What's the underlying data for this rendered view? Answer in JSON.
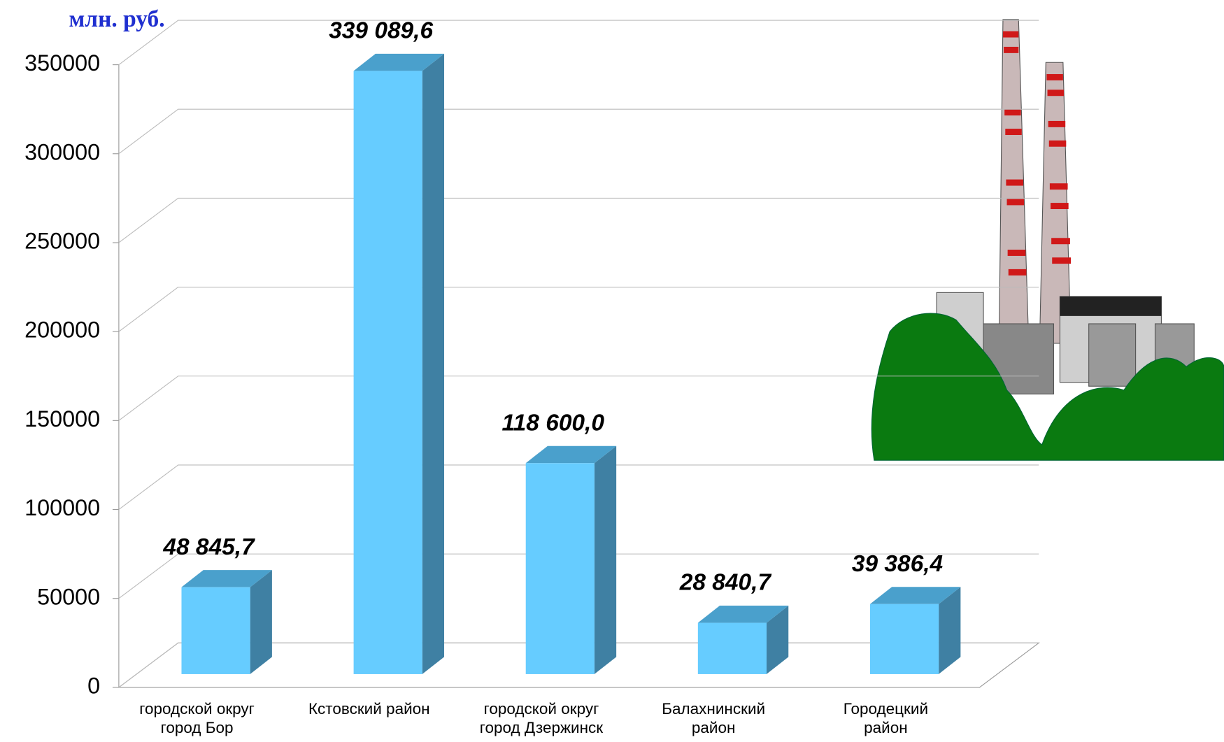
{
  "chart_data": {
    "type": "bar3d",
    "y_label": "млн. руб.",
    "categories": [
      "городской округ\nгород Бор",
      "Кстовский район",
      "городской округ\nгород Дзержинск",
      "Балахнинский\nрайон",
      "Городецкий\nрайон"
    ],
    "values": [
      48845.7,
      339089.6,
      118600.0,
      28840.7,
      39386.4
    ],
    "value_labels": [
      "48 845,7",
      "339 089,6",
      "118 600,0",
      "28 840,7",
      "39 386,4"
    ],
    "color": "#66ccff",
    "ylim": [
      0,
      350000
    ],
    "yticks": [
      0,
      50000,
      100000,
      150000,
      200000,
      250000,
      300000,
      350000
    ],
    "grid": true
  }
}
